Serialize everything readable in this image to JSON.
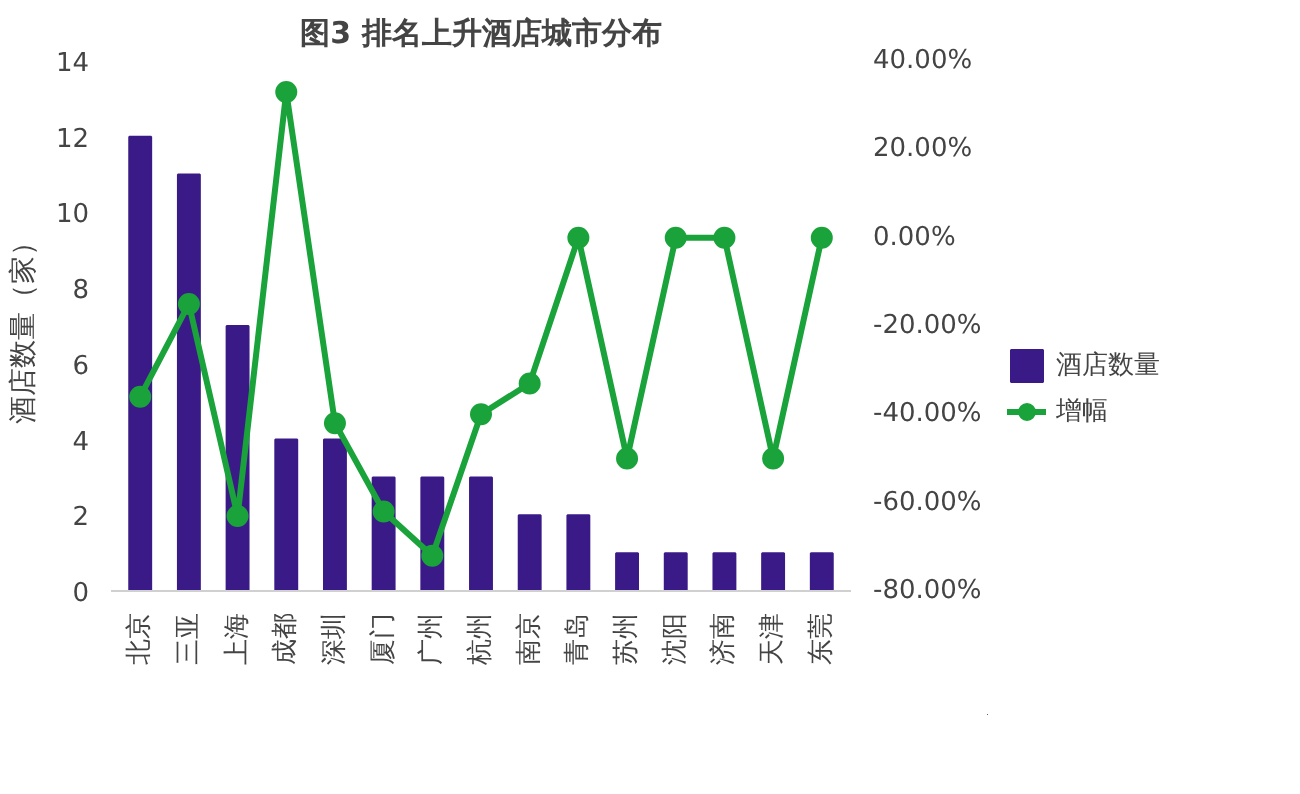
{
  "chart_data": {
    "type": "bar",
    "title": "图3 排名上升酒店城市分布",
    "ylabel": "酒店数量（家）",
    "categories": [
      "北京",
      "三亚",
      "上海",
      "成都",
      "深圳",
      "厦门",
      "广州",
      "杭州",
      "南京",
      "青岛",
      "苏州",
      "沈阳",
      "济南",
      "天津",
      "东莞"
    ],
    "series": [
      {
        "name": "酒店数量",
        "color": "#3a1a86",
        "values": [
          12,
          11,
          7,
          4,
          4,
          3,
          3,
          3,
          2,
          2,
          1,
          1,
          1,
          1,
          1
        ]
      },
      {
        "name": "增幅",
        "type": "line",
        "axis": "y2",
        "color": "#1aa33a",
        "marker": "circle",
        "line_style": "solid",
        "values": [
          -36,
          -15,
          -63,
          33,
          -42,
          -62,
          -72,
          -40,
          -33,
          0,
          -50,
          0,
          0,
          -50,
          0
        ]
      }
    ],
    "ylim": [
      0,
      14
    ],
    "yticks": [
      0,
      2,
      4,
      6,
      8,
      10,
      12,
      14
    ],
    "y2lim": [
      -80,
      40
    ],
    "y2ticks": [
      {
        "value": -80,
        "label": "-80.00%"
      },
      {
        "value": -60,
        "label": "-60.00%"
      },
      {
        "value": -40,
        "label": "-40.00%"
      },
      {
        "value": -20,
        "label": "-20.00%"
      },
      {
        "value": 0,
        "label": "0.00%"
      },
      {
        "value": 20,
        "label": "20.00%"
      },
      {
        "value": 40,
        "label": "40.00%"
      }
    ],
    "grid": false,
    "legend": "right"
  }
}
